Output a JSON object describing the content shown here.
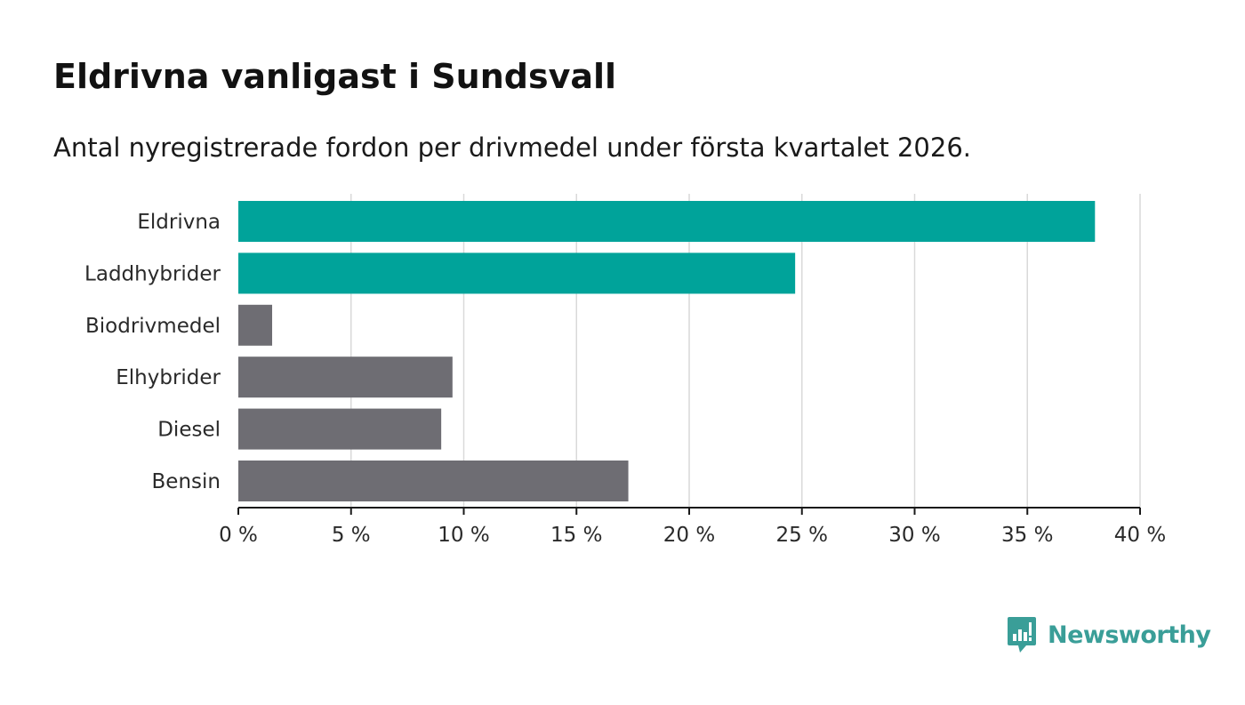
{
  "chart_data": {
    "type": "bar",
    "orientation": "horizontal",
    "title": "Eldrivna vanligast i Sundsvall",
    "subtitle": "Antal nyregistrerade fordon per drivmedel under första kvartalet 2026.",
    "categories": [
      "Eldrivna",
      "Laddhybrider",
      "Biodrivmedel",
      "Elhybrider",
      "Diesel",
      "Bensin"
    ],
    "values": [
      38.0,
      24.7,
      1.5,
      9.5,
      9.0,
      17.3
    ],
    "unit": "%",
    "xlim": [
      0,
      40
    ],
    "xticks": [
      0,
      5,
      10,
      15,
      20,
      25,
      30,
      35,
      40
    ],
    "xtick_labels": [
      "0 %",
      "5 %",
      "10 %",
      "15 %",
      "20 %",
      "25 %",
      "30 %",
      "35 %",
      "40 %"
    ],
    "grid": true,
    "bar_colors": [
      "#00a39a",
      "#00a39a",
      "#6e6d73",
      "#6e6d73",
      "#6e6d73",
      "#6e6d73"
    ],
    "xlabel": "",
    "ylabel": ""
  },
  "colors": {
    "highlight": "#00a39a",
    "default_bar": "#6e6d73",
    "grid": "#d9d9d9",
    "axis": "#1a1a1a",
    "brand": "#3a9e98"
  },
  "branding": {
    "logo_text": "Newsworthy",
    "logo_icon": "bar-chart-speech-bubble-icon"
  }
}
